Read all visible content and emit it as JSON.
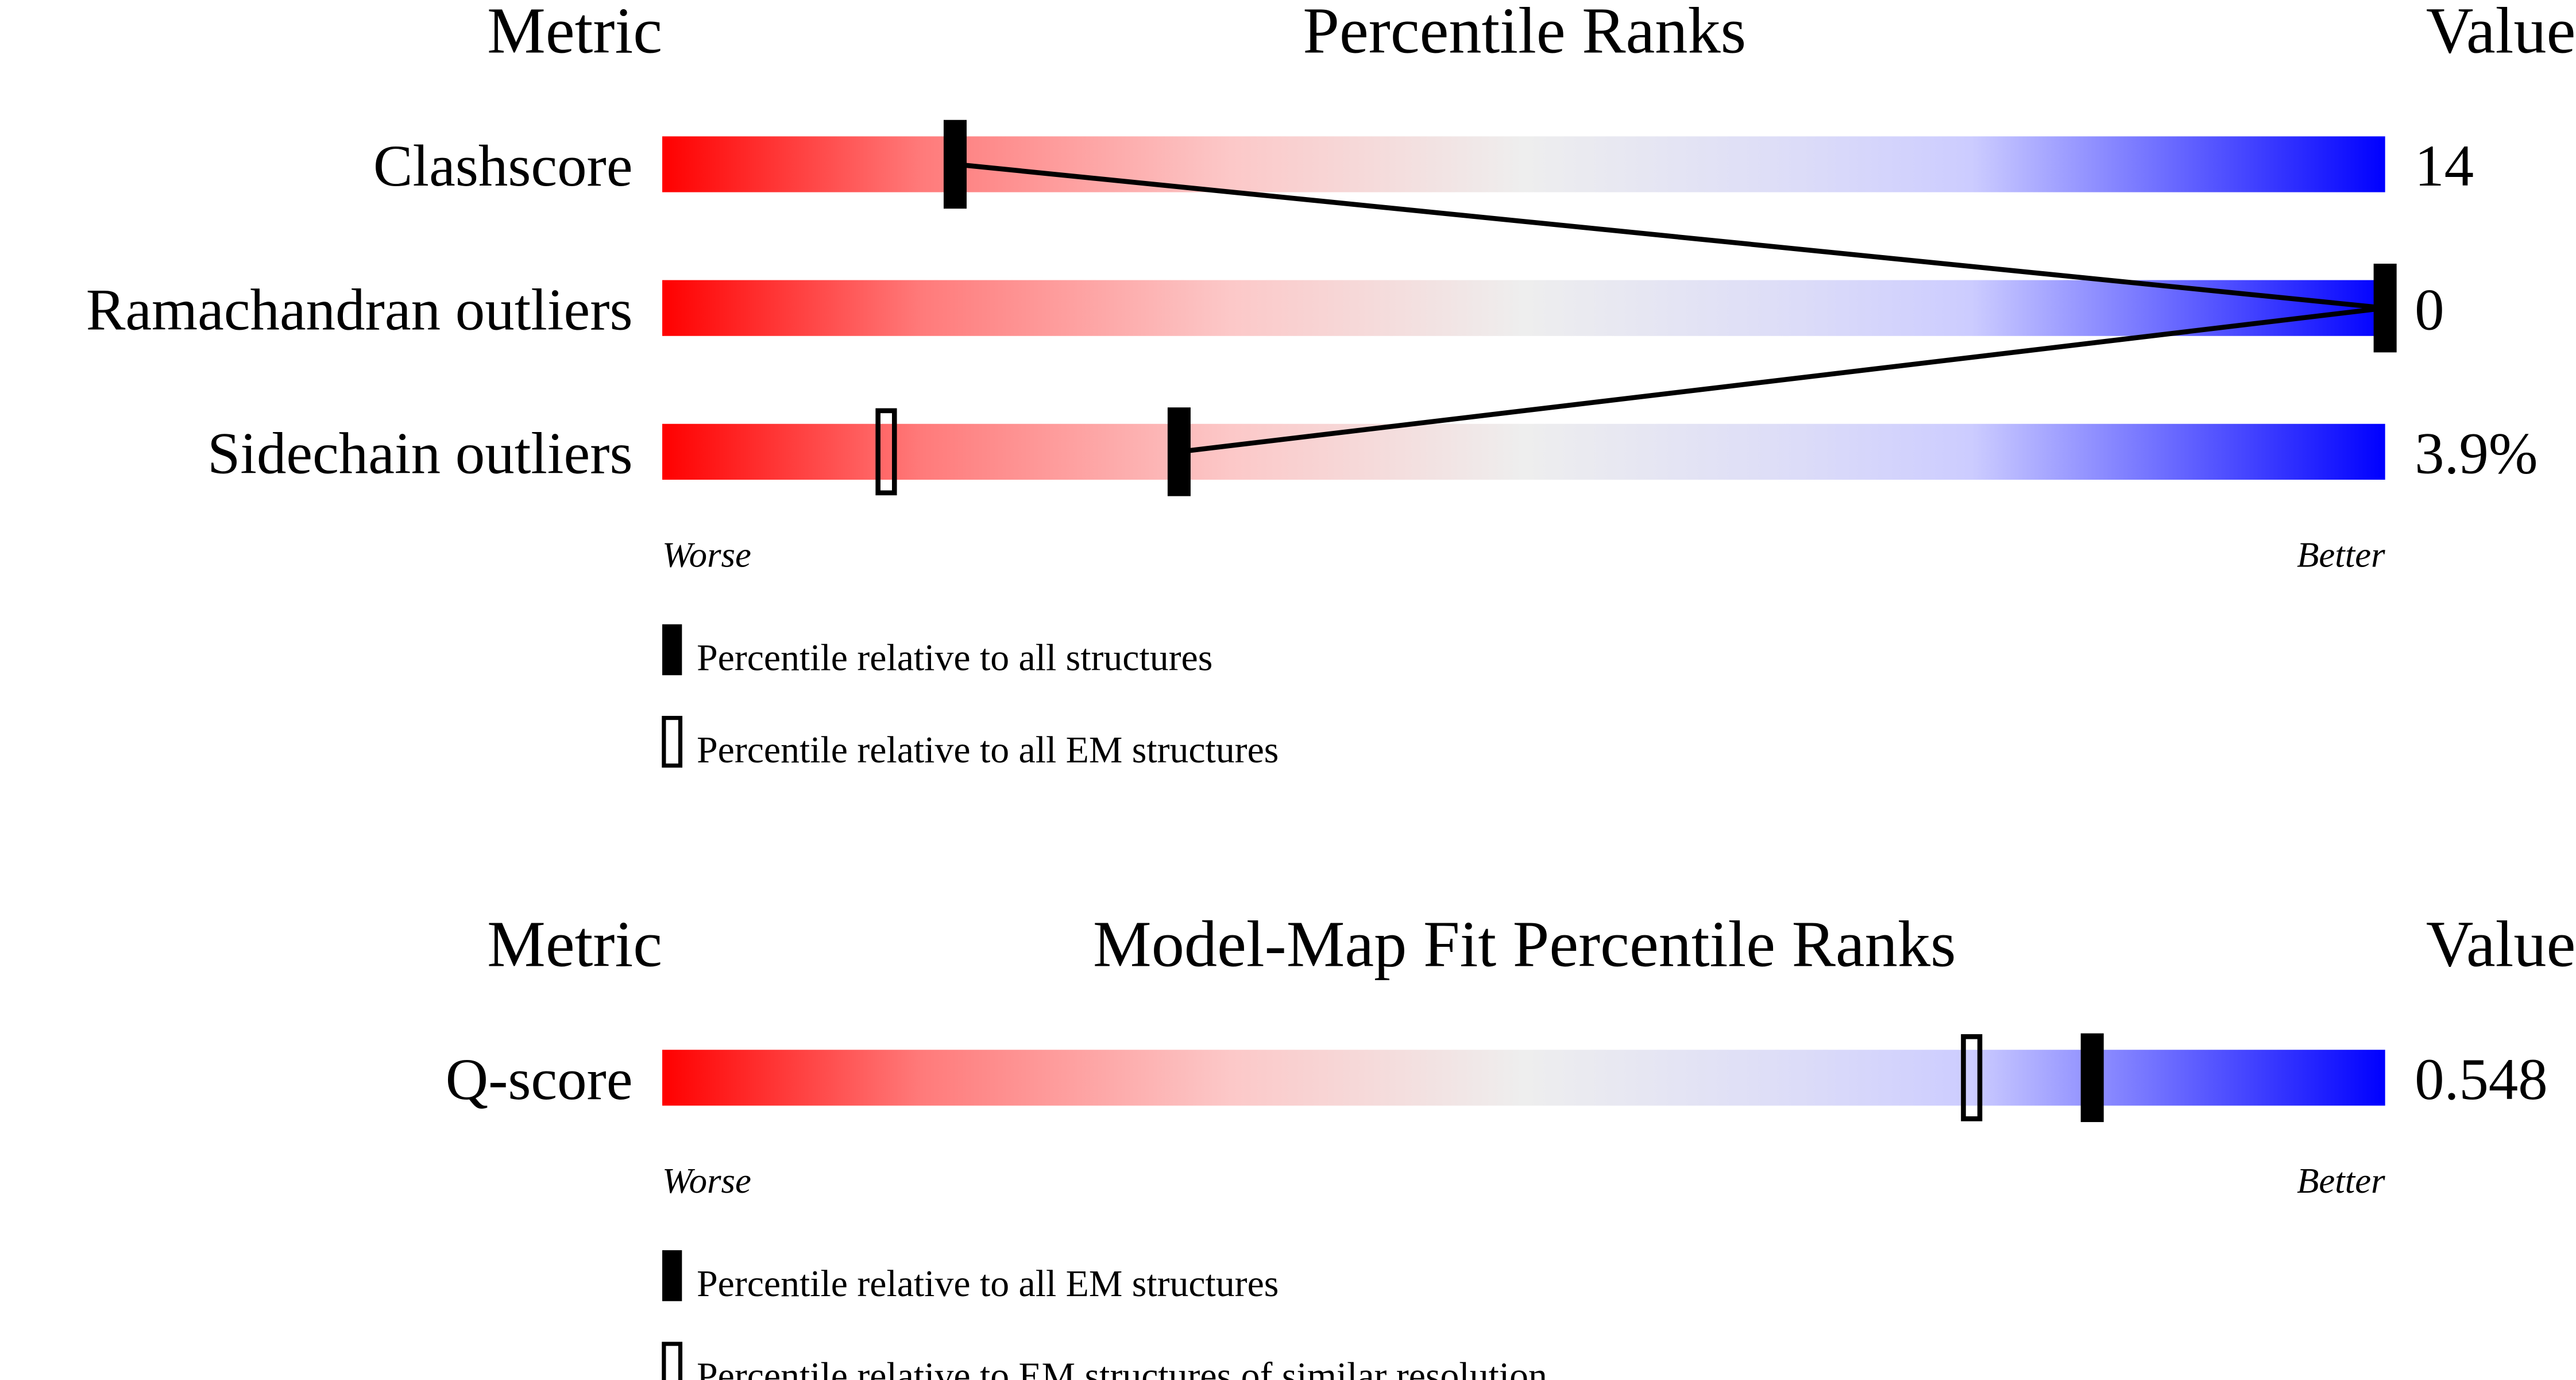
{
  "chart_data": [
    {
      "type": "percentile-slider",
      "title": "Percentile Ranks",
      "metric_header": "Metric",
      "value_header": "Value",
      "xlim": [
        0,
        100
      ],
      "low_label": "Worse",
      "high_label": "Better",
      "categories": [
        "Clashscore",
        "Ramachandran outliers",
        "Sidechain outliers"
      ],
      "value_column": [
        "14",
        "0",
        "3.9%"
      ],
      "series": [
        {
          "name": "Percentile relative to all structures",
          "style": "filled",
          "color": "#000000",
          "values": [
            17,
            100,
            30
          ]
        },
        {
          "name": "Percentile relative to all EM structures",
          "style": "hollow",
          "color": "#000000",
          "values": [
            null,
            null,
            13
          ]
        }
      ]
    },
    {
      "type": "percentile-slider",
      "title": "Model-Map Fit Percentile Ranks",
      "metric_header": "Metric",
      "value_header": "Value",
      "xlim": [
        0,
        100
      ],
      "low_label": "Worse",
      "high_label": "Better",
      "categories": [
        "Q-score"
      ],
      "value_column": [
        "0.548"
      ],
      "series": [
        {
          "name": "Percentile relative to all EM structures",
          "style": "filled",
          "color": "#000000",
          "values": [
            83
          ]
        },
        {
          "name": "Percentile relative to EM structures of similar resolution",
          "style": "hollow",
          "color": "#000000",
          "values": [
            76
          ]
        }
      ]
    }
  ]
}
